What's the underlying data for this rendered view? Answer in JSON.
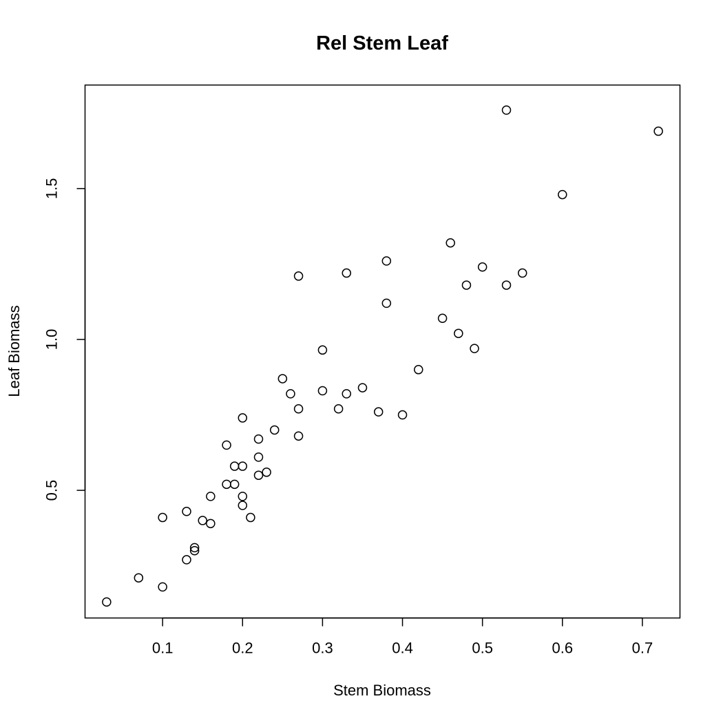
{
  "chart_data": {
    "type": "scatter",
    "title": "Rel Stem Leaf",
    "xlabel": "Stem Biomass",
    "ylabel": "Leaf Biomass",
    "xlim": [
      0.003,
      0.747
    ],
    "ylim": [
      0.077,
      1.843
    ],
    "x_ticks": [
      {
        "value": 0.1,
        "label": "0.1"
      },
      {
        "value": 0.2,
        "label": "0.2"
      },
      {
        "value": 0.3,
        "label": "0.3"
      },
      {
        "value": 0.4,
        "label": "0.4"
      },
      {
        "value": 0.5,
        "label": "0.5"
      },
      {
        "value": 0.6,
        "label": "0.6"
      },
      {
        "value": 0.7,
        "label": "0.7"
      }
    ],
    "y_ticks": [
      {
        "value": 0.5,
        "label": "0.5"
      },
      {
        "value": 1.0,
        "label": "1.0"
      },
      {
        "value": 1.5,
        "label": "1.5"
      }
    ],
    "grid": false,
    "marker": "open-circle",
    "points": [
      {
        "x": 0.53,
        "y": 1.76
      },
      {
        "x": 0.72,
        "y": 1.69
      },
      {
        "x": 0.6,
        "y": 1.48
      },
      {
        "x": 0.46,
        "y": 1.32
      },
      {
        "x": 0.38,
        "y": 1.26
      },
      {
        "x": 0.5,
        "y": 1.24
      },
      {
        "x": 0.33,
        "y": 1.22
      },
      {
        "x": 0.55,
        "y": 1.22
      },
      {
        "x": 0.27,
        "y": 1.21
      },
      {
        "x": 0.48,
        "y": 1.18
      },
      {
        "x": 0.53,
        "y": 1.18
      },
      {
        "x": 0.38,
        "y": 1.12
      },
      {
        "x": 0.45,
        "y": 1.07
      },
      {
        "x": 0.47,
        "y": 1.02
      },
      {
        "x": 0.49,
        "y": 0.97
      },
      {
        "x": 0.3,
        "y": 0.965
      },
      {
        "x": 0.42,
        "y": 0.9
      },
      {
        "x": 0.25,
        "y": 0.87
      },
      {
        "x": 0.35,
        "y": 0.84
      },
      {
        "x": 0.3,
        "y": 0.83
      },
      {
        "x": 0.26,
        "y": 0.82
      },
      {
        "x": 0.33,
        "y": 0.82
      },
      {
        "x": 0.27,
        "y": 0.77
      },
      {
        "x": 0.32,
        "y": 0.77
      },
      {
        "x": 0.37,
        "y": 0.76
      },
      {
        "x": 0.4,
        "y": 0.75
      },
      {
        "x": 0.2,
        "y": 0.74
      },
      {
        "x": 0.24,
        "y": 0.7
      },
      {
        "x": 0.27,
        "y": 0.68
      },
      {
        "x": 0.22,
        "y": 0.67
      },
      {
        "x": 0.18,
        "y": 0.65
      },
      {
        "x": 0.22,
        "y": 0.61
      },
      {
        "x": 0.19,
        "y": 0.58
      },
      {
        "x": 0.2,
        "y": 0.58
      },
      {
        "x": 0.23,
        "y": 0.56
      },
      {
        "x": 0.22,
        "y": 0.55
      },
      {
        "x": 0.18,
        "y": 0.52
      },
      {
        "x": 0.19,
        "y": 0.52
      },
      {
        "x": 0.16,
        "y": 0.48
      },
      {
        "x": 0.2,
        "y": 0.48
      },
      {
        "x": 0.2,
        "y": 0.45
      },
      {
        "x": 0.13,
        "y": 0.43
      },
      {
        "x": 0.1,
        "y": 0.41
      },
      {
        "x": 0.21,
        "y": 0.41
      },
      {
        "x": 0.15,
        "y": 0.4
      },
      {
        "x": 0.16,
        "y": 0.39
      },
      {
        "x": 0.14,
        "y": 0.31
      },
      {
        "x": 0.14,
        "y": 0.3
      },
      {
        "x": 0.13,
        "y": 0.27
      },
      {
        "x": 0.07,
        "y": 0.21
      },
      {
        "x": 0.1,
        "y": 0.18
      },
      {
        "x": 0.03,
        "y": 0.13
      }
    ]
  }
}
